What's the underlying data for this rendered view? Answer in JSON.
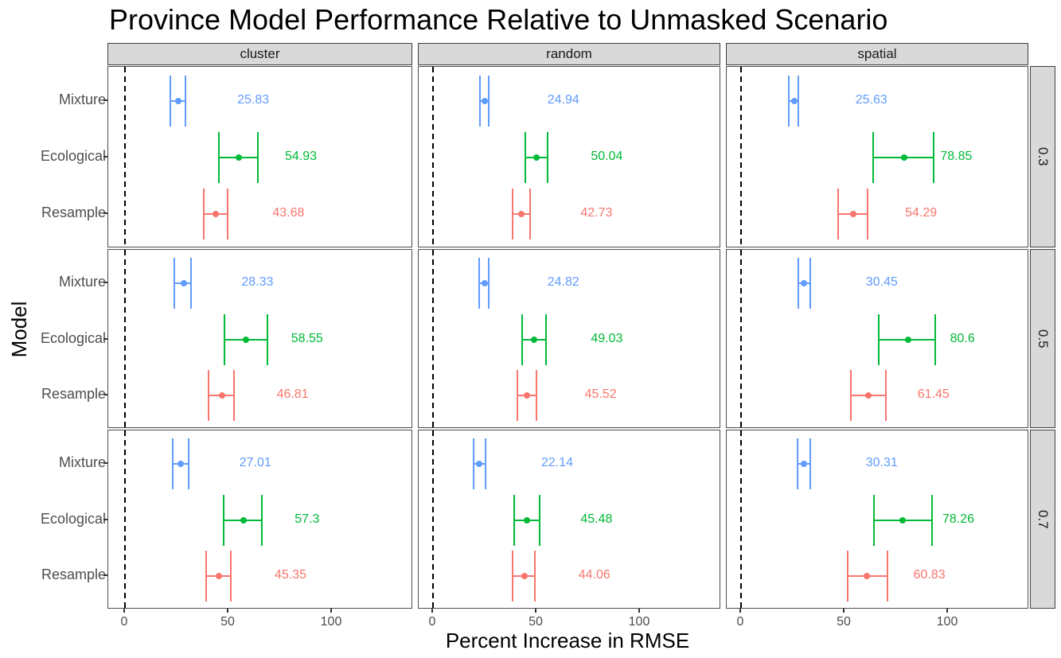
{
  "title": "Province Model Performance Relative to Unmasked Scenario",
  "chart_data": {
    "type": "scatter",
    "title": "Province Model Performance Relative to Unmasked Scenario",
    "xlabel": "Percent Increase in RMSE",
    "ylabel": "Model",
    "x_ticks": [
      0,
      50,
      100
    ],
    "xlim": [
      -8,
      140
    ],
    "grid": false,
    "legend": "none",
    "reference_line": {
      "x": 0,
      "style": "dashed",
      "color": "#000000"
    },
    "facet_columns": [
      "cluster",
      "random",
      "spatial"
    ],
    "facet_rows": [
      "0.3",
      "0.5",
      "0.7"
    ],
    "categories": [
      "Mixture",
      "Ecological",
      "Resample"
    ],
    "series_colors": {
      "Mixture": "#619CFF",
      "Ecological": "#00BA38",
      "Resample": "#F8766D"
    },
    "panels": [
      {
        "facet_col": "cluster",
        "facet_row": "0.3",
        "points": [
          {
            "model": "Mixture",
            "value": 25.83,
            "ci_low": 22.0,
            "ci_high": 29.3,
            "label": "25.83",
            "label_x": 62
          },
          {
            "model": "Ecological",
            "value": 54.93,
            "ci_low": 45.2,
            "ci_high": 64.1,
            "label": "54.93",
            "label_x": 85
          },
          {
            "model": "Resample",
            "value": 43.68,
            "ci_low": 38.2,
            "ci_high": 49.8,
            "label": "43.68",
            "label_x": 79
          }
        ]
      },
      {
        "facet_col": "random",
        "facet_row": "0.3",
        "points": [
          {
            "model": "Mixture",
            "value": 24.94,
            "ci_low": 22.7,
            "ci_high": 27.0,
            "label": "24.94",
            "label_x": 63
          },
          {
            "model": "Ecological",
            "value": 50.04,
            "ci_low": 44.5,
            "ci_high": 55.2,
            "label": "50.04",
            "label_x": 84
          },
          {
            "model": "Resample",
            "value": 42.73,
            "ci_low": 38.3,
            "ci_high": 46.8,
            "label": "42.73",
            "label_x": 79
          }
        ]
      },
      {
        "facet_col": "spatial",
        "facet_row": "0.3",
        "points": [
          {
            "model": "Mixture",
            "value": 25.63,
            "ci_low": 23.2,
            "ci_high": 27.7,
            "label": "25.63",
            "label_x": 63
          },
          {
            "model": "Ecological",
            "value": 78.85,
            "ci_low": 63.7,
            "ci_high": 92.9,
            "label": "78.85",
            "label_x": 104
          },
          {
            "model": "Resample",
            "value": 54.29,
            "ci_low": 47.1,
            "ci_high": 61.3,
            "label": "54.29",
            "label_x": 87
          }
        ]
      },
      {
        "facet_col": "cluster",
        "facet_row": "0.5",
        "points": [
          {
            "model": "Mixture",
            "value": 28.33,
            "ci_low": 23.9,
            "ci_high": 32.0,
            "label": "28.33",
            "label_x": 64
          },
          {
            "model": "Ecological",
            "value": 58.55,
            "ci_low": 47.9,
            "ci_high": 68.7,
            "label": "58.55",
            "label_x": 88
          },
          {
            "model": "Resample",
            "value": 46.81,
            "ci_low": 40.5,
            "ci_high": 52.5,
            "label": "46.81",
            "label_x": 81
          }
        ]
      },
      {
        "facet_col": "random",
        "facet_row": "0.5",
        "points": [
          {
            "model": "Mixture",
            "value": 24.82,
            "ci_low": 22.4,
            "ci_high": 27.1,
            "label": "24.82",
            "label_x": 63
          },
          {
            "model": "Ecological",
            "value": 49.03,
            "ci_low": 43.2,
            "ci_high": 54.6,
            "label": "49.03",
            "label_x": 84
          },
          {
            "model": "Resample",
            "value": 45.52,
            "ci_low": 40.9,
            "ci_high": 50.1,
            "label": "45.52",
            "label_x": 81
          }
        ]
      },
      {
        "facet_col": "spatial",
        "facet_row": "0.5",
        "points": [
          {
            "model": "Mixture",
            "value": 30.45,
            "ci_low": 27.8,
            "ci_high": 33.6,
            "label": "30.45",
            "label_x": 68
          },
          {
            "model": "Ecological",
            "value": 80.6,
            "ci_low": 66.7,
            "ci_high": 93.8,
            "label": "80.6",
            "label_x": 107
          },
          {
            "model": "Resample",
            "value": 61.45,
            "ci_low": 53.2,
            "ci_high": 70.0,
            "label": "61.45",
            "label_x": 93
          }
        ]
      },
      {
        "facet_col": "cluster",
        "facet_row": "0.7",
        "points": [
          {
            "model": "Mixture",
            "value": 27.01,
            "ci_low": 23.2,
            "ci_high": 30.9,
            "label": "27.01",
            "label_x": 63
          },
          {
            "model": "Ecological",
            "value": 57.3,
            "ci_low": 47.5,
            "ci_high": 66.2,
            "label": "57.3",
            "label_x": 88
          },
          {
            "model": "Resample",
            "value": 45.35,
            "ci_low": 39.1,
            "ci_high": 51.1,
            "label": "45.35",
            "label_x": 80
          }
        ]
      },
      {
        "facet_col": "random",
        "facet_row": "0.7",
        "points": [
          {
            "model": "Mixture",
            "value": 22.14,
            "ci_low": 19.7,
            "ci_high": 25.2,
            "label": "22.14",
            "label_x": 60
          },
          {
            "model": "Ecological",
            "value": 45.48,
            "ci_low": 39.1,
            "ci_high": 51.4,
            "label": "45.48",
            "label_x": 79
          },
          {
            "model": "Resample",
            "value": 44.06,
            "ci_low": 38.3,
            "ci_high": 49.4,
            "label": "44.06",
            "label_x": 78
          }
        ]
      },
      {
        "facet_col": "spatial",
        "facet_row": "0.7",
        "points": [
          {
            "model": "Mixture",
            "value": 30.31,
            "ci_low": 27.4,
            "ci_high": 33.6,
            "label": "30.31",
            "label_x": 68
          },
          {
            "model": "Ecological",
            "value": 78.26,
            "ci_low": 64.2,
            "ci_high": 92.2,
            "label": "78.26",
            "label_x": 105
          },
          {
            "model": "Resample",
            "value": 60.83,
            "ci_low": 51.6,
            "ci_high": 70.9,
            "label": "60.83",
            "label_x": 91
          }
        ]
      }
    ]
  }
}
